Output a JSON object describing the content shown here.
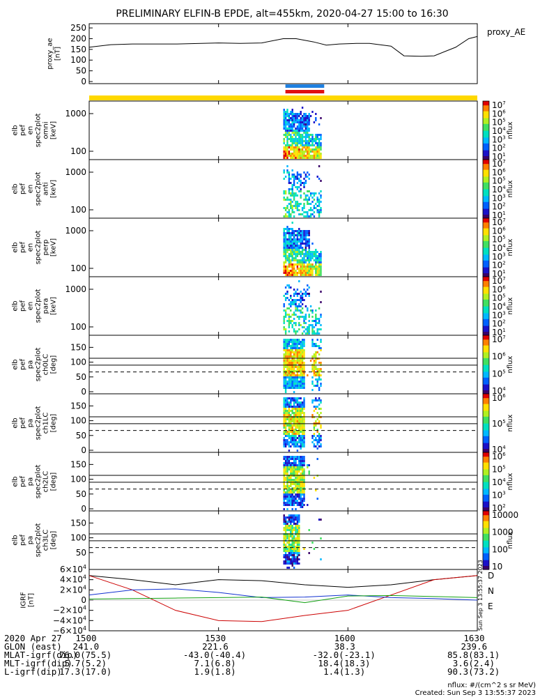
{
  "title": "PRELIMINARY ELFIN-B EPDE, alt=455km, 2020-04-27 15:00 to 16:30",
  "ae_panel": {
    "ylabel": "proxy_ae\n[nT]",
    "legend": "proxy_AE",
    "yticks": [
      "250",
      "200",
      "150",
      "100",
      "50",
      "0"
    ],
    "ylim": [
      0,
      260
    ],
    "line_color": "#000000"
  },
  "energy_panels": [
    {
      "ylabel": "elb\npef\nen\nspec2plot\nomni\n[keV]",
      "yticks": [
        "1000",
        "100"
      ],
      "cbar_label": "nflux",
      "cbar_ticks": [
        "10^7",
        "10^6",
        "10^5",
        "10^4",
        "10^3",
        "10^2",
        "10^1"
      ]
    },
    {
      "ylabel": "elb\npef\nen\nspec2plot\nanti\n[keV]",
      "yticks": [
        "1000",
        "100"
      ],
      "cbar_label": "nflux",
      "cbar_ticks": [
        "10^7",
        "10^6",
        "10^5",
        "10^4",
        "10^3",
        "10^2",
        "10^1"
      ]
    },
    {
      "ylabel": "elb\npef\nen\nspec2plot\nperp\n[keV]",
      "yticks": [
        "1000",
        "100"
      ],
      "cbar_label": "nflux",
      "cbar_ticks": [
        "10^7",
        "10^6",
        "10^5",
        "10^4",
        "10^3",
        "10^2",
        "10^1"
      ]
    },
    {
      "ylabel": "elb\npef\nen\nspec2plot\npara\n[keV]",
      "yticks": [
        "1000",
        "100"
      ],
      "cbar_label": "nflux",
      "cbar_ticks": [
        "10^7",
        "10^6",
        "10^5",
        "10^4",
        "10^3",
        "10^2",
        "10^1"
      ]
    }
  ],
  "pa_panels": [
    {
      "ylabel": "elb\npef\npa\nspec2plot\nch0LC\n[deg]",
      "yticks": [
        "150",
        "100",
        "50",
        "0"
      ],
      "cbar_label": "nflux",
      "cbar_ticks": [
        "10^7",
        "10^6",
        "10^5",
        "10^4"
      ]
    },
    {
      "ylabel": "elb\npef\npa\nspec2plot\nch1LC\n[deg]",
      "yticks": [
        "150",
        "100",
        "50",
        "0"
      ],
      "cbar_label": "nflux",
      "cbar_ticks": [
        "10^6",
        "10^5",
        "10^4"
      ]
    },
    {
      "ylabel": "elb\npef\npa\nspec2plot\nch2LC\n[deg]",
      "yticks": [
        "150",
        "100",
        "50",
        "0"
      ],
      "cbar_label": "nflux",
      "cbar_ticks": [
        "10^6",
        "10^5",
        "10^4",
        "10^3",
        "10^2"
      ]
    },
    {
      "ylabel": "elb\npef\npa\nspec2plot\nch3LC\n[deg]",
      "yticks": [
        "150",
        "100",
        "50"
      ],
      "cbar_label": "nflux",
      "cbar_ticks": [
        "10000",
        "1000",
        "100",
        "10"
      ]
    }
  ],
  "igrf_panel": {
    "ylabel": "IGRF\n[nT]",
    "yticks": [
      "6×10^4",
      "4×10^4",
      "2×10^4",
      "0",
      "−2×10^4",
      "−4×10^4",
      "−6×10^4"
    ],
    "ylim": [
      -60000,
      60000
    ],
    "legend": [
      "D",
      "N",
      "E"
    ],
    "series_colors": {
      "total": "#000000",
      "D": "#cc0000",
      "N": "#1030d0",
      "E": "#10a010"
    },
    "side_stamp": "Sun Sep  3 13:55:37 2023"
  },
  "chart_data": {
    "type": "line",
    "time_ticks": [
      "1500",
      "1530",
      "1600",
      "1630"
    ],
    "xlim_minutes": [
      0,
      90
    ],
    "proxy_ae": {
      "t_min": [
        0,
        5,
        10,
        20,
        30,
        35,
        40,
        45,
        48,
        52,
        55,
        58,
        62,
        65,
        70,
        73,
        77,
        80,
        85,
        88,
        90
      ],
      "values": [
        160,
        172,
        175,
        175,
        180,
        178,
        180,
        200,
        200,
        185,
        170,
        175,
        178,
        178,
        165,
        120,
        118,
        120,
        160,
        200,
        210
      ]
    },
    "igrf": {
      "t_min": [
        0,
        10,
        20,
        30,
        40,
        50,
        60,
        70,
        80,
        90
      ],
      "total": [
        48000,
        40000,
        30000,
        40000,
        38000,
        30000,
        25000,
        30000,
        40000,
        48000
      ],
      "D": [
        48000,
        20000,
        -20000,
        -40000,
        -42000,
        -30000,
        -20000,
        10000,
        40000,
        48000
      ],
      "N": [
        10000,
        20000,
        22000,
        15000,
        5000,
        6000,
        10000,
        5000,
        3000,
        0
      ],
      "E": [
        2000,
        3000,
        4000,
        5000,
        6000,
        -5000,
        8000,
        9000,
        7000,
        5000
      ]
    },
    "science_zones": [
      {
        "type": "sun-bar",
        "color": "#ffd800",
        "t_range": [
          0,
          90
        ]
      },
      {
        "type": "blue",
        "color": "#2080e0",
        "t_range": [
          45.5,
          54.5
        ]
      },
      {
        "type": "red",
        "color": "#e01010",
        "t_range": [
          45.5,
          54.5
        ]
      }
    ]
  },
  "footer": {
    "rows": [
      {
        "label": "2020 Apr 27",
        "values": [
          "1500",
          "1530",
          "1600",
          "1630"
        ]
      },
      {
        "label": "GLON (east)",
        "values": [
          "241.0",
          "221.6",
          "38.3",
          "239.6"
        ]
      },
      {
        "label": "MLAT-igrf(dip)",
        "values": [
          "76.0(75.5)",
          "-43.0(-40.4)",
          "-32.0(-23.1)",
          "85.8(83.1)"
        ]
      },
      {
        "label": "MLT-igrf(dip)",
        "values": [
          "5.7(5.2)",
          "7.1(6.8)",
          "18.4(18.3)",
          "3.6(2.4)"
        ]
      },
      {
        "label": "L-igrf(dip)",
        "values": [
          "17.3(17.0)",
          "1.9(1.8)",
          "1.4(1.3)",
          "90.3(73.2)"
        ]
      }
    ],
    "units": "nflux: #/(cm^2 s sr MeV)",
    "created": "Created: Sun Sep  3 13:55:37 2023"
  }
}
